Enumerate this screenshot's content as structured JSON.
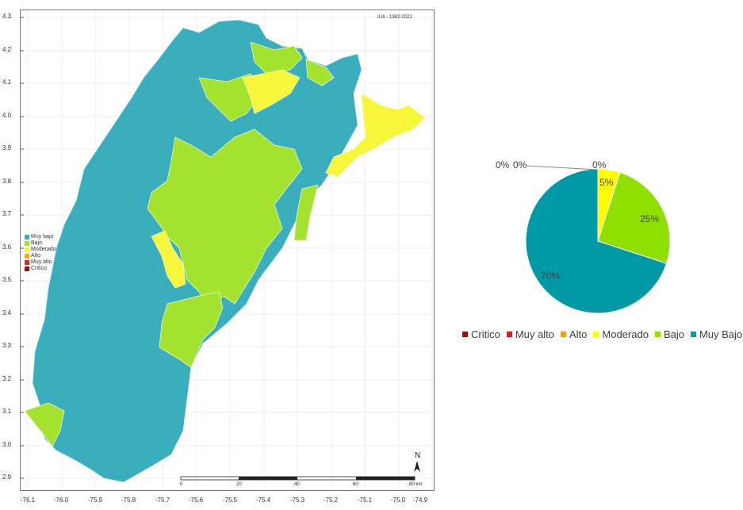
{
  "map": {
    "title": "IUA - 1982-2022",
    "y_ticks": [
      "4.3",
      "4.2",
      "4.1",
      "4.0",
      "3.9",
      "3.8",
      "3.7",
      "3.6",
      "3.5",
      "3.4",
      "3.3",
      "3.2",
      "3.1",
      "3.0",
      "2.9"
    ],
    "x_ticks": [
      "-76.1",
      "-76.0",
      "-75.9",
      "-75.8",
      "-75.7",
      "-75.6",
      "-75.5",
      "-75.4",
      "-75.3",
      "-75.2",
      "-75.1",
      "-75.0",
      "-74.9"
    ],
    "legend": [
      {
        "label": "Muy bajo",
        "color": "#3aaebd"
      },
      {
        "label": "Bajo",
        "color": "#a3e22e"
      },
      {
        "label": "Moderado",
        "color": "#f6f63a"
      },
      {
        "label": "Alto",
        "color": "#f5a623"
      },
      {
        "label": "Muy alto",
        "color": "#ee2222"
      },
      {
        "label": "Critico",
        "color": "#a01010"
      }
    ],
    "north_label": "N",
    "scale_labels": [
      "0",
      "20",
      "40",
      "60",
      "80 km"
    ]
  },
  "chart_data": {
    "type": "pie",
    "categories": [
      "Critico",
      "Muy alto",
      "Alto",
      "Moderado",
      "Bajo",
      "Muy Bajo"
    ],
    "values": [
      0,
      0,
      0,
      5,
      25,
      70
    ],
    "labels": [
      "0%",
      "0%",
      "0%",
      "5%",
      "25%",
      "70%"
    ],
    "colors": [
      "#a01010",
      "#ee1111",
      "#f5a000",
      "#ffff00",
      "#8fe000",
      "#009aa6"
    ],
    "legend_position": "bottom"
  }
}
